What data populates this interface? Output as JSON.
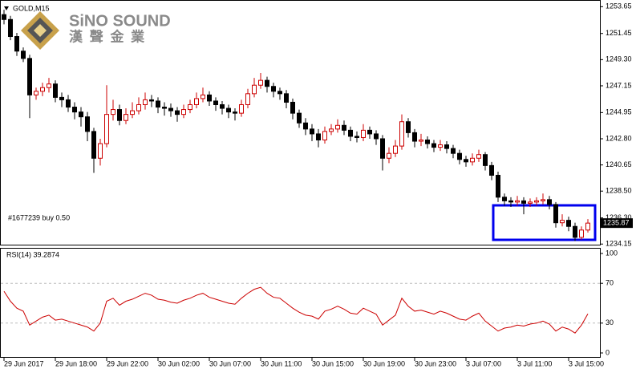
{
  "chart_data": [
    {
      "type": "candlestick",
      "title": "GOLD,M15",
      "logo_name": "SiNO SOUND",
      "logo_subtitle": "漢 聲 金 業",
      "order_label": "#1677239 buy 0.50",
      "current_price": 1235.87,
      "up_color": "#cc0000",
      "down_color": "#000000",
      "ylim": [
        1234.1,
        1254.2
      ],
      "yticks": [
        1253.65,
        1251.45,
        {
          "value": 1249.3,
          "label": "1249.30"
        },
        1247.15,
        1244.95,
        {
          "value": 1242.8,
          "label": "1242.80"
        },
        1240.65,
        {
          "value": 1238.5,
          "label": "1238.50"
        },
        {
          "value": 1236.3,
          "label": "1236.30"
        },
        1234.15
      ],
      "x_labels": [
        {
          "value": 0,
          "label": "29 Jun 2017"
        },
        {
          "value": 8,
          "label": "29 Jun 18:00"
        },
        {
          "value": 16,
          "label": "29 Jun 22:00"
        },
        {
          "value": 24,
          "label": "30 Jun 02:00"
        },
        {
          "value": 32,
          "label": "30 Jun 07:00"
        },
        {
          "value": 40,
          "label": "30 Jun 11:00"
        },
        {
          "value": 48,
          "label": "30 Jun 15:00"
        },
        {
          "value": 56,
          "label": "30 Jun 19:00"
        },
        {
          "value": 64,
          "label": "30 Jun 23:00"
        },
        {
          "value": 72,
          "label": "3 Jul 07:00"
        },
        {
          "value": 80,
          "label": "3 Jul 11:00"
        },
        {
          "value": 88,
          "label": "3 Jul 15:00"
        }
      ],
      "open": [
        1253.0,
        1252.6,
        1251.2,
        1250.0,
        1249.4,
        1246.4,
        1246.7,
        1247.0,
        1247.3,
        1246.2,
        1246.0,
        1245.4,
        1245.0,
        1244.6,
        1243.4,
        1241.2,
        1242.4,
        1244.8,
        1245.2,
        1244.3,
        1244.8,
        1245.1,
        1245.6,
        1246.0,
        1245.9,
        1245.4,
        1245.3,
        1245.1,
        1244.8,
        1245.2,
        1245.6,
        1246.1,
        1246.4,
        1245.9,
        1245.6,
        1245.3,
        1245.0,
        1244.9,
        1245.6,
        1246.5,
        1247.2,
        1247.6,
        1247.1,
        1246.7,
        1246.5,
        1245.8,
        1244.9,
        1244.1,
        1243.6,
        1243.2,
        1242.7,
        1243.4,
        1243.6,
        1243.9,
        1243.5,
        1243.0,
        1242.9,
        1243.5,
        1243.2,
        1242.8,
        1241.2,
        1241.6,
        1242.2,
        1244.2,
        1243.3,
        1242.6,
        1242.7,
        1242.4,
        1242.1,
        1242.3,
        1242.0,
        1241.6,
        1241.1,
        1240.9,
        1241.2,
        1241.5,
        1240.6,
        1239.8,
        1238.0,
        1237.7,
        1237.6,
        1237.7,
        1237.5,
        1237.6,
        1237.7,
        1237.8,
        1237.4,
        1235.9,
        1236.1,
        1235.6,
        1234.7,
        1235.3
      ],
      "high": [
        1253.4,
        1252.9,
        1251.5,
        1250.3,
        1249.7,
        1247.0,
        1247.4,
        1247.8,
        1247.6,
        1246.6,
        1246.4,
        1245.8,
        1245.4,
        1245.0,
        1243.7,
        1242.8,
        1247.2,
        1246.0,
        1245.6,
        1245.3,
        1245.8,
        1246.2,
        1246.6,
        1246.4,
        1246.2,
        1245.8,
        1245.7,
        1245.4,
        1245.6,
        1246.0,
        1246.6,
        1247.0,
        1246.7,
        1246.2,
        1245.9,
        1245.6,
        1245.3,
        1246.0,
        1246.9,
        1247.8,
        1248.2,
        1247.9,
        1247.4,
        1247.0,
        1246.8,
        1246.1,
        1245.2,
        1244.5,
        1244.0,
        1243.6,
        1243.8,
        1244.0,
        1244.4,
        1244.3,
        1243.8,
        1243.4,
        1244.0,
        1243.8,
        1243.5,
        1243.1,
        1242.1,
        1242.7,
        1244.8,
        1244.5,
        1243.6,
        1243.2,
        1243.0,
        1242.7,
        1242.7,
        1242.6,
        1242.3,
        1241.9,
        1241.4,
        1241.6,
        1241.9,
        1241.7,
        1240.9,
        1240.1,
        1238.3,
        1238.0,
        1238.1,
        1238.0,
        1237.9,
        1238.0,
        1238.3,
        1238.1,
        1237.6,
        1236.6,
        1236.4,
        1235.9,
        1235.6,
        1236.2
      ],
      "low": [
        1252.2,
        1250.9,
        1249.6,
        1249.1,
        1244.5,
        1246.0,
        1246.3,
        1246.6,
        1245.8,
        1245.4,
        1245.0,
        1244.4,
        1243.8,
        1242.6,
        1240.0,
        1240.6,
        1242.1,
        1244.3,
        1243.9,
        1244.0,
        1244.5,
        1244.8,
        1245.2,
        1245.4,
        1244.9,
        1244.7,
        1244.6,
        1244.2,
        1244.5,
        1244.9,
        1245.3,
        1245.8,
        1245.5,
        1245.1,
        1244.8,
        1244.5,
        1244.3,
        1244.6,
        1245.3,
        1246.2,
        1246.9,
        1246.6,
        1246.2,
        1246.0,
        1245.3,
        1244.4,
        1243.7,
        1243.1,
        1242.6,
        1242.1,
        1242.4,
        1243.1,
        1243.3,
        1243.1,
        1242.6,
        1242.5,
        1242.6,
        1242.8,
        1242.3,
        1240.2,
        1240.8,
        1241.3,
        1241.9,
        1242.9,
        1242.1,
        1242.2,
        1242.0,
        1241.7,
        1241.8,
        1241.6,
        1241.2,
        1240.7,
        1240.5,
        1240.6,
        1240.9,
        1240.2,
        1239.4,
        1237.6,
        1237.3,
        1237.2,
        1237.3,
        1236.6,
        1237.2,
        1237.3,
        1237.4,
        1237.0,
        1235.5,
        1235.6,
        1235.2,
        1234.4,
        1234.5,
        1235.1
      ],
      "close": [
        1252.6,
        1251.2,
        1250.0,
        1249.4,
        1246.4,
        1246.7,
        1247.0,
        1247.3,
        1246.2,
        1246.0,
        1245.4,
        1245.0,
        1244.6,
        1243.4,
        1241.2,
        1242.4,
        1244.8,
        1245.2,
        1244.3,
        1244.8,
        1245.1,
        1245.6,
        1246.0,
        1245.9,
        1245.4,
        1245.3,
        1245.1,
        1244.8,
        1245.2,
        1245.6,
        1246.1,
        1246.4,
        1245.9,
        1245.6,
        1245.3,
        1245.0,
        1244.9,
        1245.6,
        1246.5,
        1247.2,
        1247.6,
        1247.1,
        1246.7,
        1246.5,
        1245.8,
        1244.9,
        1244.1,
        1243.6,
        1243.2,
        1242.7,
        1243.4,
        1243.6,
        1243.9,
        1243.5,
        1243.0,
        1242.9,
        1243.5,
        1243.2,
        1242.8,
        1241.2,
        1241.6,
        1242.2,
        1244.2,
        1243.3,
        1242.6,
        1242.7,
        1242.4,
        1242.1,
        1242.3,
        1242.0,
        1241.6,
        1241.1,
        1240.9,
        1241.2,
        1241.5,
        1240.6,
        1239.8,
        1238.0,
        1237.7,
        1237.6,
        1237.7,
        1237.5,
        1237.6,
        1237.7,
        1237.8,
        1237.4,
        1235.9,
        1236.1,
        1235.6,
        1234.7,
        1235.3,
        1235.87
      ]
    },
    {
      "type": "line",
      "title": "RSI(14) 39.2874",
      "color": "#cc0000",
      "ylim": [
        0,
        100
      ],
      "yticks": [
        100,
        70,
        30,
        0
      ],
      "levels": [
        70,
        30
      ],
      "values": [
        62,
        52,
        45,
        42,
        28,
        32,
        36,
        38,
        33,
        34,
        32,
        30,
        28,
        26,
        22,
        30,
        52,
        55,
        48,
        52,
        54,
        57,
        60,
        58,
        54,
        53,
        51,
        50,
        53,
        55,
        58,
        60,
        56,
        54,
        52,
        50,
        49,
        55,
        60,
        64,
        66,
        60,
        56,
        55,
        50,
        45,
        41,
        38,
        37,
        34,
        42,
        44,
        47,
        44,
        40,
        39,
        45,
        42,
        39,
        28,
        33,
        38,
        55,
        47,
        42,
        43,
        41,
        39,
        42,
        40,
        37,
        34,
        33,
        37,
        40,
        32,
        27,
        22,
        25,
        26,
        28,
        27,
        29,
        30,
        32,
        29,
        22,
        26,
        24,
        20,
        28,
        39.2874
      ]
    }
  ]
}
